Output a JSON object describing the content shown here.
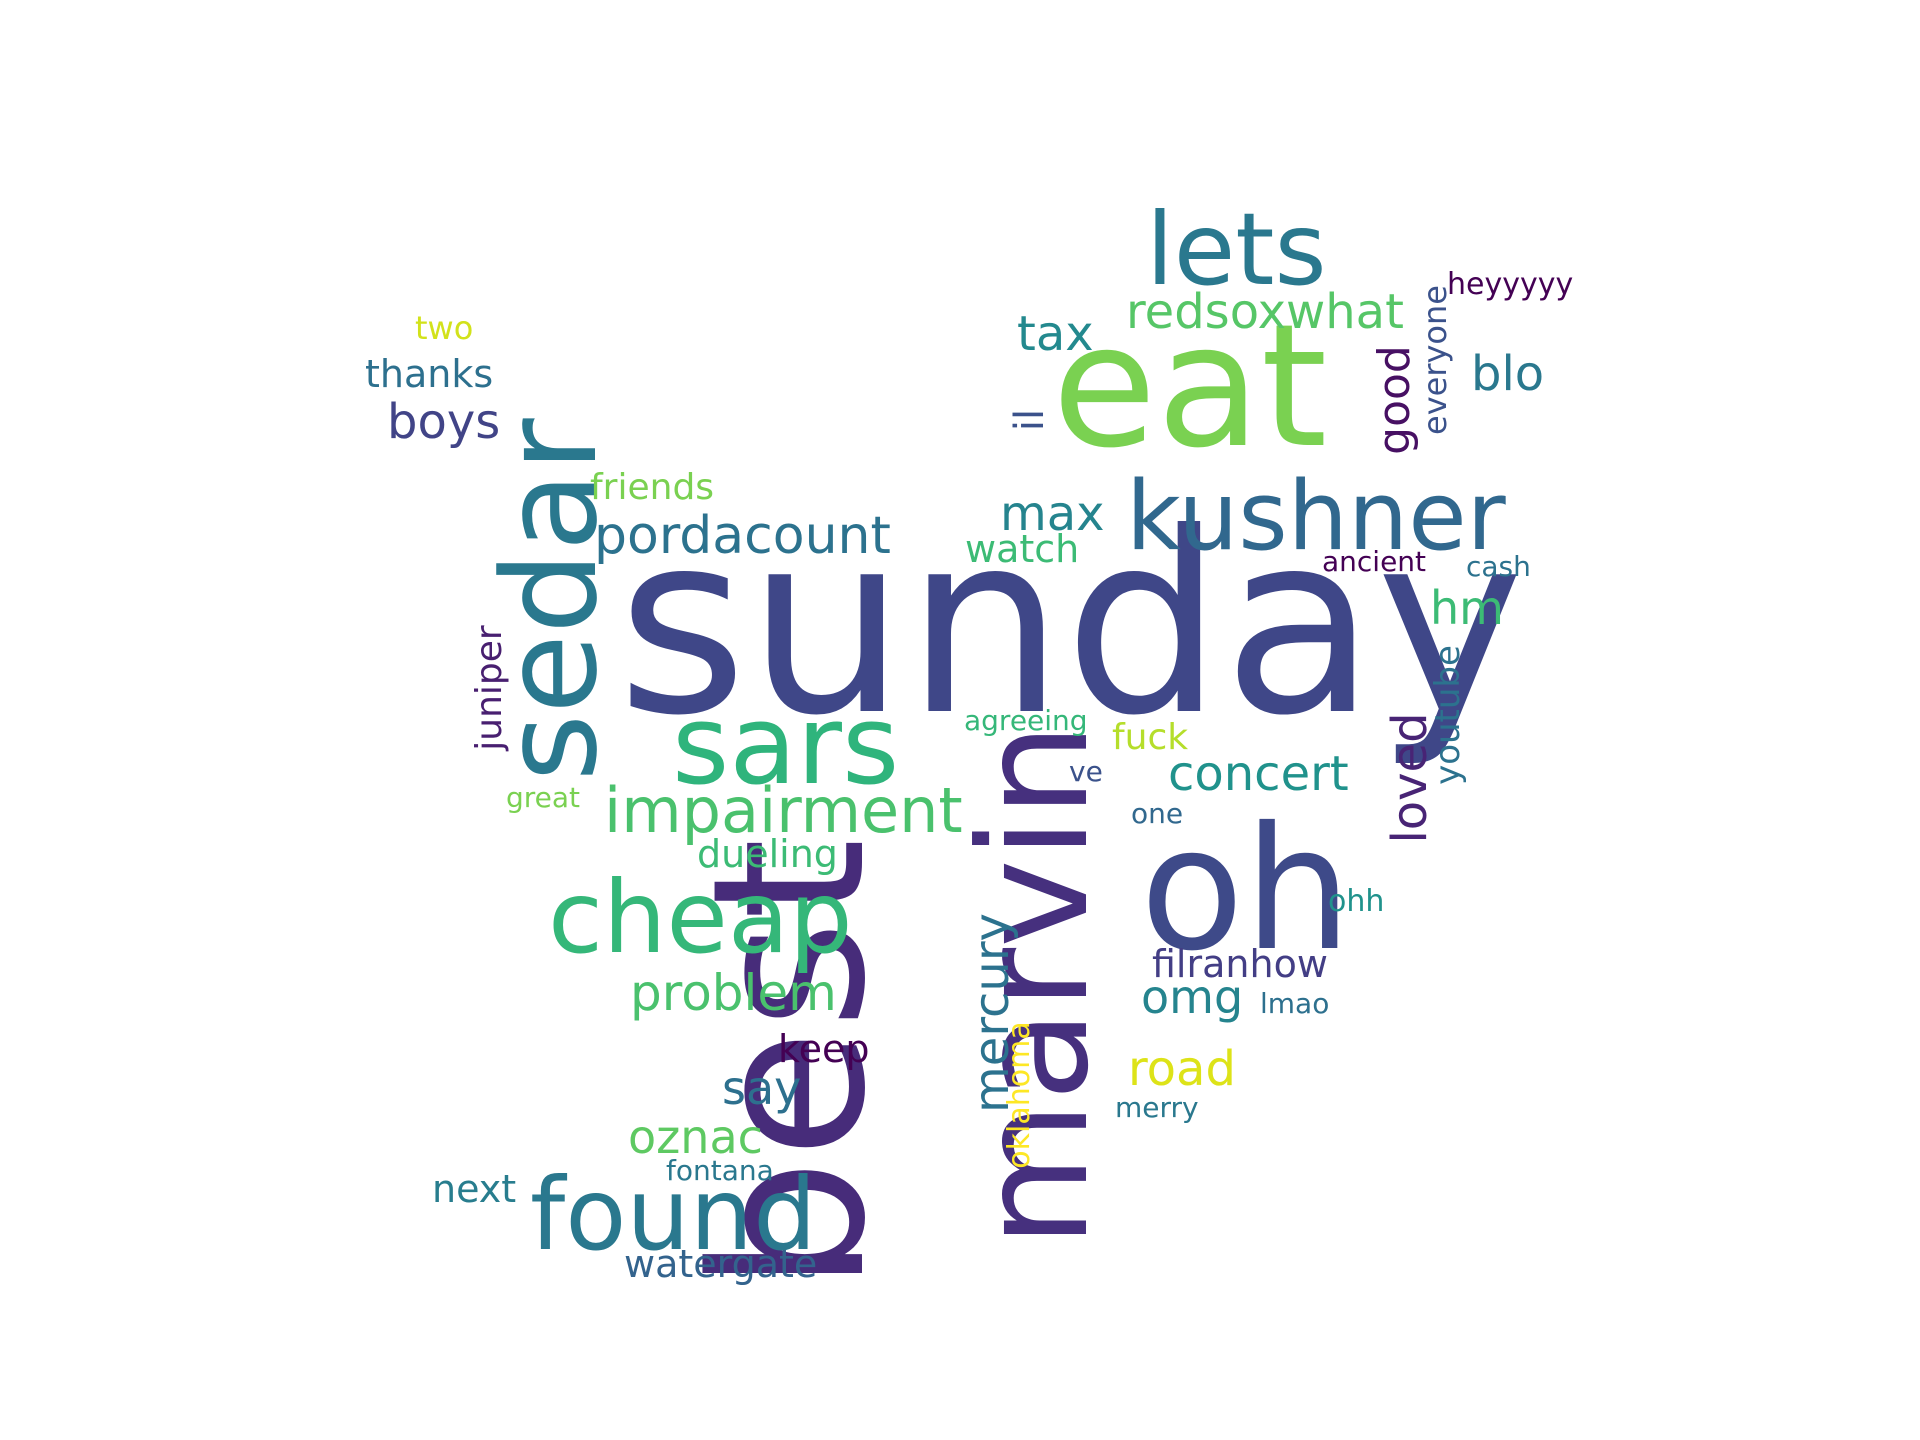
{
  "words": [
    {
      "id": "sunday",
      "text": "sunday",
      "color": "#3f4788"
    },
    {
      "id": "eat",
      "text": "eat",
      "color": "#7ad151"
    },
    {
      "id": "best",
      "text": "best",
      "color": "#472c7a"
    },
    {
      "id": "marvin",
      "text": "marvin",
      "color": "#46307e"
    },
    {
      "id": "oh",
      "text": "oh",
      "color": "#3e4a89"
    },
    {
      "id": "sedar",
      "text": "sedar",
      "color": "#2a788e"
    },
    {
      "id": "kushner",
      "text": "kushner",
      "color": "#31688e"
    },
    {
      "id": "lets",
      "text": "lets",
      "color": "#2a788e"
    },
    {
      "id": "sars",
      "text": "sars",
      "color": "#2fb47c"
    },
    {
      "id": "cheap",
      "text": "cheap",
      "color": "#35b779"
    },
    {
      "id": "found",
      "text": "found",
      "color": "#2a788e"
    },
    {
      "id": "impairment",
      "text": "impairment",
      "color": "#4ac16d"
    },
    {
      "id": "pordacount",
      "text": "pordacount",
      "color": "#2c728e"
    },
    {
      "id": "redsoxwhat",
      "text": "redsoxwhat",
      "color": "#56c667"
    },
    {
      "id": "concert",
      "text": "concert",
      "color": "#20928c"
    },
    {
      "id": "problem",
      "text": "problem",
      "color": "#4ac16d"
    },
    {
      "id": "loved",
      "text": "loved",
      "color": "#482475"
    },
    {
      "id": "mercury",
      "text": "mercury",
      "color": "#2c728e"
    },
    {
      "id": "boys",
      "text": "boys",
      "color": "#414487"
    },
    {
      "id": "road",
      "text": "road",
      "color": "#dde318"
    },
    {
      "id": "tax",
      "text": "tax",
      "color": "#23898e"
    },
    {
      "id": "blo",
      "text": "blo",
      "color": "#2a788e"
    },
    {
      "id": "good",
      "text": "good",
      "color": "#471063"
    },
    {
      "id": "max",
      "text": "max",
      "color": "#25848e"
    },
    {
      "id": "omg",
      "text": "omg",
      "color": "#25848e"
    },
    {
      "id": "oznac",
      "text": "oznac",
      "color": "#5ec962"
    },
    {
      "id": "say",
      "text": "say",
      "color": "#2d708e"
    },
    {
      "id": "hm",
      "text": "hm",
      "color": "#3cbb75"
    },
    {
      "id": "il",
      "text": "il",
      "color": "#3b528b"
    },
    {
      "id": "everyone",
      "text": "everyone",
      "color": "#3b528b"
    },
    {
      "id": "youtube",
      "text": "youtube",
      "color": "#2c728e"
    },
    {
      "id": "filranhow",
      "text": "filranhow",
      "color": "#433e85"
    },
    {
      "id": "watergate",
      "text": "watergate",
      "color": "#33638d"
    },
    {
      "id": "dueling",
      "text": "dueling",
      "color": "#3cbb75"
    },
    {
      "id": "watch",
      "text": "watch",
      "color": "#3cbb75"
    },
    {
      "id": "thanks",
      "text": "thanks",
      "color": "#2d708e"
    },
    {
      "id": "juniper",
      "text": "juniper",
      "color": "#481f70"
    },
    {
      "id": "next",
      "text": "next",
      "color": "#287d8e"
    },
    {
      "id": "keep",
      "text": "keep",
      "color": "#440154"
    },
    {
      "id": "friends",
      "text": "friends",
      "color": "#7ad151"
    },
    {
      "id": "fuck",
      "text": "fuck",
      "color": "#b5de2b"
    },
    {
      "id": "heyyyyy",
      "text": "heyyyyy",
      "color": "#440154"
    },
    {
      "id": "two",
      "text": "two",
      "color": "#d2e21b"
    },
    {
      "id": "oklahoma",
      "text": "oklahoma",
      "color": "#fde725"
    },
    {
      "id": "fontana",
      "text": "fontana",
      "color": "#2a788e"
    },
    {
      "id": "agreeing",
      "text": "agreeing",
      "color": "#35b779"
    },
    {
      "id": "ancient",
      "text": "ancient",
      "color": "#440154"
    },
    {
      "id": "cash",
      "text": "cash",
      "color": "#2c728e"
    },
    {
      "id": "ohh",
      "text": "ohh",
      "color": "#20928c"
    },
    {
      "id": "lmao",
      "text": "lmao",
      "color": "#2d708e"
    },
    {
      "id": "merry",
      "text": "merry",
      "color": "#2a788e"
    },
    {
      "id": "one",
      "text": "one",
      "color": "#31688e"
    },
    {
      "id": "ve",
      "text": "ve",
      "color": "#3b528b"
    },
    {
      "id": "great",
      "text": "great",
      "color": "#7ad151"
    }
  ]
}
